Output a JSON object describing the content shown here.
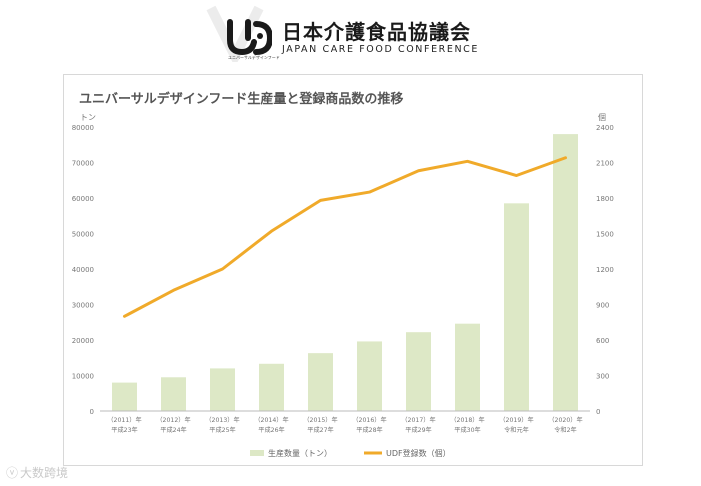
{
  "header": {
    "org_name_jp": "日本介護食品協議会",
    "org_name_en": "JAPAN CARE FOOD CONFERENCE",
    "logo_text": "UD",
    "logo_subtitle": "ユニバーサルデザインフード"
  },
  "watermark": {
    "text": "大数跨境"
  },
  "colors": {
    "bar": "#dde8c6",
    "line": "#f0aa2a",
    "axis_text": "#777777"
  },
  "chart_data": {
    "type": "bar+line",
    "title": "ユニバーサルデザインフード生産量と登録商品数の推移",
    "categories": [
      [
        "（2011）年",
        "平成23年"
      ],
      [
        "（2012）年",
        "平成24年"
      ],
      [
        "（2013）年",
        "平成25年"
      ],
      [
        "（2014）年",
        "平成26年"
      ],
      [
        "（2015）年",
        "平成27年"
      ],
      [
        "（2016）年",
        "平成28年"
      ],
      [
        "（2017）年",
        "平成29年"
      ],
      [
        "（2018）年",
        "平成30年"
      ],
      [
        "（2019）年",
        "令和元年"
      ],
      [
        "（2020）年",
        "令和2年"
      ]
    ],
    "left_axis": {
      "unit": "トン",
      "min": 0,
      "max": 80000,
      "ticks": [
        "80000",
        "70000",
        "60000",
        "50000",
        "40000",
        "30000",
        "20000",
        "10000",
        "0"
      ]
    },
    "right_axis": {
      "unit": "個",
      "min": 0,
      "max": 2400,
      "ticks": [
        "2400",
        "2100",
        "1800",
        "1500",
        "1200",
        "900",
        "600",
        "300",
        "0"
      ]
    },
    "series": [
      {
        "name": "生産数量（トン）",
        "type": "bar",
        "axis": "left",
        "values": [
          8000,
          9500,
          12000,
          13300,
          16300,
          19600,
          22200,
          24600,
          58500,
          78000
        ]
      },
      {
        "name": "UDF登録数（個）",
        "type": "line",
        "axis": "right",
        "values": [
          800,
          1020,
          1200,
          1520,
          1780,
          1850,
          2030,
          2110,
          1990,
          2140
        ]
      }
    ],
    "legend": {
      "position": "bottom-center"
    }
  }
}
